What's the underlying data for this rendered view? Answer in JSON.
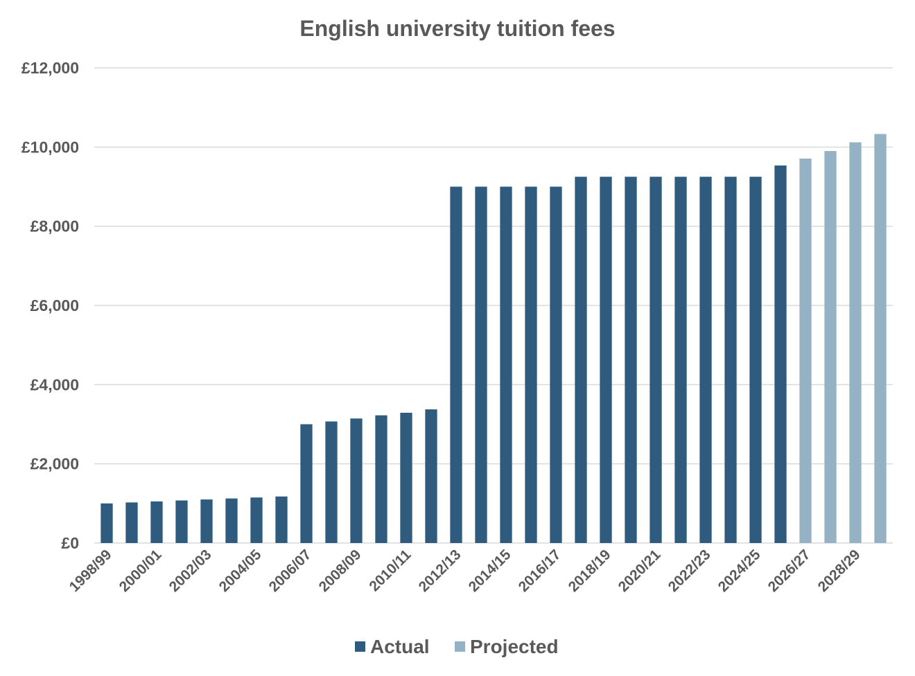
{
  "chart_data": {
    "type": "bar",
    "title": "English university tuition fees",
    "xlabel": "",
    "ylabel": "",
    "ylim": [
      0,
      12000
    ],
    "yticks": [
      0,
      2000,
      4000,
      6000,
      8000,
      10000,
      12000
    ],
    "ytick_labels": [
      "£0",
      "£2,000",
      "£4,000",
      "£6,000",
      "£8,000",
      "£10,000",
      "£12,000"
    ],
    "grid": true,
    "legend_position": "bottom",
    "categories": [
      "1998/99",
      "1999/00",
      "2000/01",
      "2001/02",
      "2002/03",
      "2003/04",
      "2004/05",
      "2005/06",
      "2006/07",
      "2007/08",
      "2008/09",
      "2009/10",
      "2010/11",
      "2011/12",
      "2012/13",
      "2013/14",
      "2014/15",
      "2015/16",
      "2016/17",
      "2017/18",
      "2018/19",
      "2019/20",
      "2020/21",
      "2021/22",
      "2022/23",
      "2023/24",
      "2024/25",
      "2025/26",
      "2026/27",
      "2027/28",
      "2028/29",
      "2029/30"
    ],
    "tick_label_categories": [
      "1998/99",
      "2000/01",
      "2002/03",
      "2004/05",
      "2006/07",
      "2008/09",
      "2010/11",
      "2012/13",
      "2014/15",
      "2016/17",
      "2018/19",
      "2020/21",
      "2022/23",
      "2024/25",
      "2026/27",
      "2028/29"
    ],
    "series": [
      {
        "name": "Actual",
        "color": "#2e5b7e",
        "values": [
          1000,
          1025,
          1050,
          1075,
          1100,
          1125,
          1150,
          1175,
          3000,
          3070,
          3145,
          3225,
          3290,
          3375,
          9000,
          9000,
          9000,
          9000,
          9000,
          9250,
          9250,
          9250,
          9250,
          9250,
          9250,
          9250,
          9250,
          9535,
          null,
          null,
          null,
          null
        ]
      },
      {
        "name": "Projected",
        "color": "#94b2c4",
        "values": [
          null,
          null,
          null,
          null,
          null,
          null,
          null,
          null,
          null,
          null,
          null,
          null,
          null,
          null,
          null,
          null,
          null,
          null,
          null,
          null,
          null,
          null,
          null,
          null,
          null,
          null,
          null,
          null,
          9710,
          9900,
          10120,
          10330
        ]
      }
    ]
  }
}
